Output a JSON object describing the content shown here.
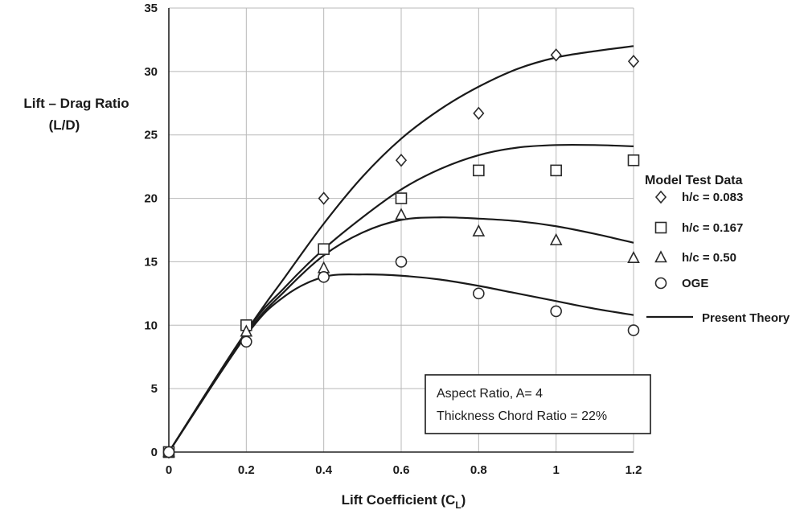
{
  "chart_data": {
    "type": "scatter",
    "xlabel": "Lift Coefficient (CL)",
    "xlabel_main": "Lift Coefficient (C",
    "xlabel_sub": "L",
    "xlabel_end": ")",
    "ylabel_line1": "Lift – Drag Ratio",
    "ylabel_line2": "(L/D)",
    "xlim": [
      0,
      1.2
    ],
    "ylim": [
      0,
      35
    ],
    "x_ticks": [
      0,
      0.2,
      0.4,
      0.6,
      0.8,
      1,
      1.2
    ],
    "x_tick_labels": [
      "0",
      "0.2",
      "0.4",
      "0.6",
      "0.8",
      "1",
      "1.2"
    ],
    "y_ticks": [
      0,
      5,
      10,
      15,
      20,
      25,
      30,
      35
    ],
    "y_tick_labels": [
      "0",
      "5",
      "10",
      "15",
      "20",
      "25",
      "30",
      "35"
    ],
    "grid": true,
    "legend_title": "Model Test Data",
    "legend_placement": "right",
    "series": [
      {
        "name": "h/c = 0.083",
        "marker": "diamond",
        "x": [
          0,
          0.2,
          0.4,
          0.6,
          0.8,
          1.0,
          1.2
        ],
        "y": [
          0,
          9.8,
          20.0,
          23.0,
          26.7,
          31.3,
          30.8
        ]
      },
      {
        "name": "h/c = 0.167",
        "marker": "square",
        "x": [
          0,
          0.2,
          0.4,
          0.6,
          0.8,
          1.0,
          1.2
        ],
        "y": [
          0,
          10.0,
          16.0,
          20.0,
          22.2,
          22.2,
          23.0
        ]
      },
      {
        "name": "h/c = 0.50",
        "marker": "triangle",
        "x": [
          0,
          0.2,
          0.4,
          0.6,
          0.8,
          1.0,
          1.2
        ],
        "y": [
          0,
          9.5,
          14.5,
          18.7,
          17.4,
          16.7,
          15.3
        ]
      },
      {
        "name": "OGE",
        "marker": "circle",
        "x": [
          0,
          0.2,
          0.4,
          0.6,
          0.8,
          1.0,
          1.2
        ],
        "y": [
          0,
          8.7,
          13.8,
          15.0,
          12.5,
          11.1,
          9.6
        ]
      }
    ],
    "theory_label": "Present Theory",
    "theory_curves": [
      {
        "x": [
          0,
          0.2,
          0.3,
          0.4,
          0.5,
          0.6,
          0.7,
          0.8,
          0.9,
          1.0,
          1.1,
          1.2
        ],
        "y": [
          0,
          9.5,
          13.8,
          18.0,
          21.7,
          24.7,
          27.0,
          28.8,
          30.2,
          31.1,
          31.6,
          32.0
        ]
      },
      {
        "x": [
          0,
          0.2,
          0.3,
          0.4,
          0.5,
          0.6,
          0.7,
          0.8,
          0.9,
          1.0,
          1.1,
          1.2
        ],
        "y": [
          0,
          9.5,
          13.0,
          16.0,
          18.5,
          20.7,
          22.3,
          23.4,
          24.0,
          24.2,
          24.2,
          24.1
        ]
      },
      {
        "x": [
          0,
          0.2,
          0.3,
          0.4,
          0.5,
          0.6,
          0.7,
          0.8,
          0.9,
          1.0,
          1.1,
          1.2
        ],
        "y": [
          0,
          9.3,
          12.7,
          15.5,
          17.3,
          18.3,
          18.5,
          18.4,
          18.2,
          17.8,
          17.2,
          16.5
        ]
      },
      {
        "x": [
          0,
          0.2,
          0.3,
          0.4,
          0.5,
          0.6,
          0.7,
          0.8,
          0.9,
          1.0,
          1.1,
          1.2
        ],
        "y": [
          0,
          9.2,
          12.3,
          13.8,
          14.0,
          13.9,
          13.6,
          13.1,
          12.5,
          11.9,
          11.3,
          10.8
        ]
      }
    ],
    "annotation_line1": "Aspect Ratio, A= 4",
    "annotation_line2": "Thickness Chord Ratio = 22%"
  }
}
